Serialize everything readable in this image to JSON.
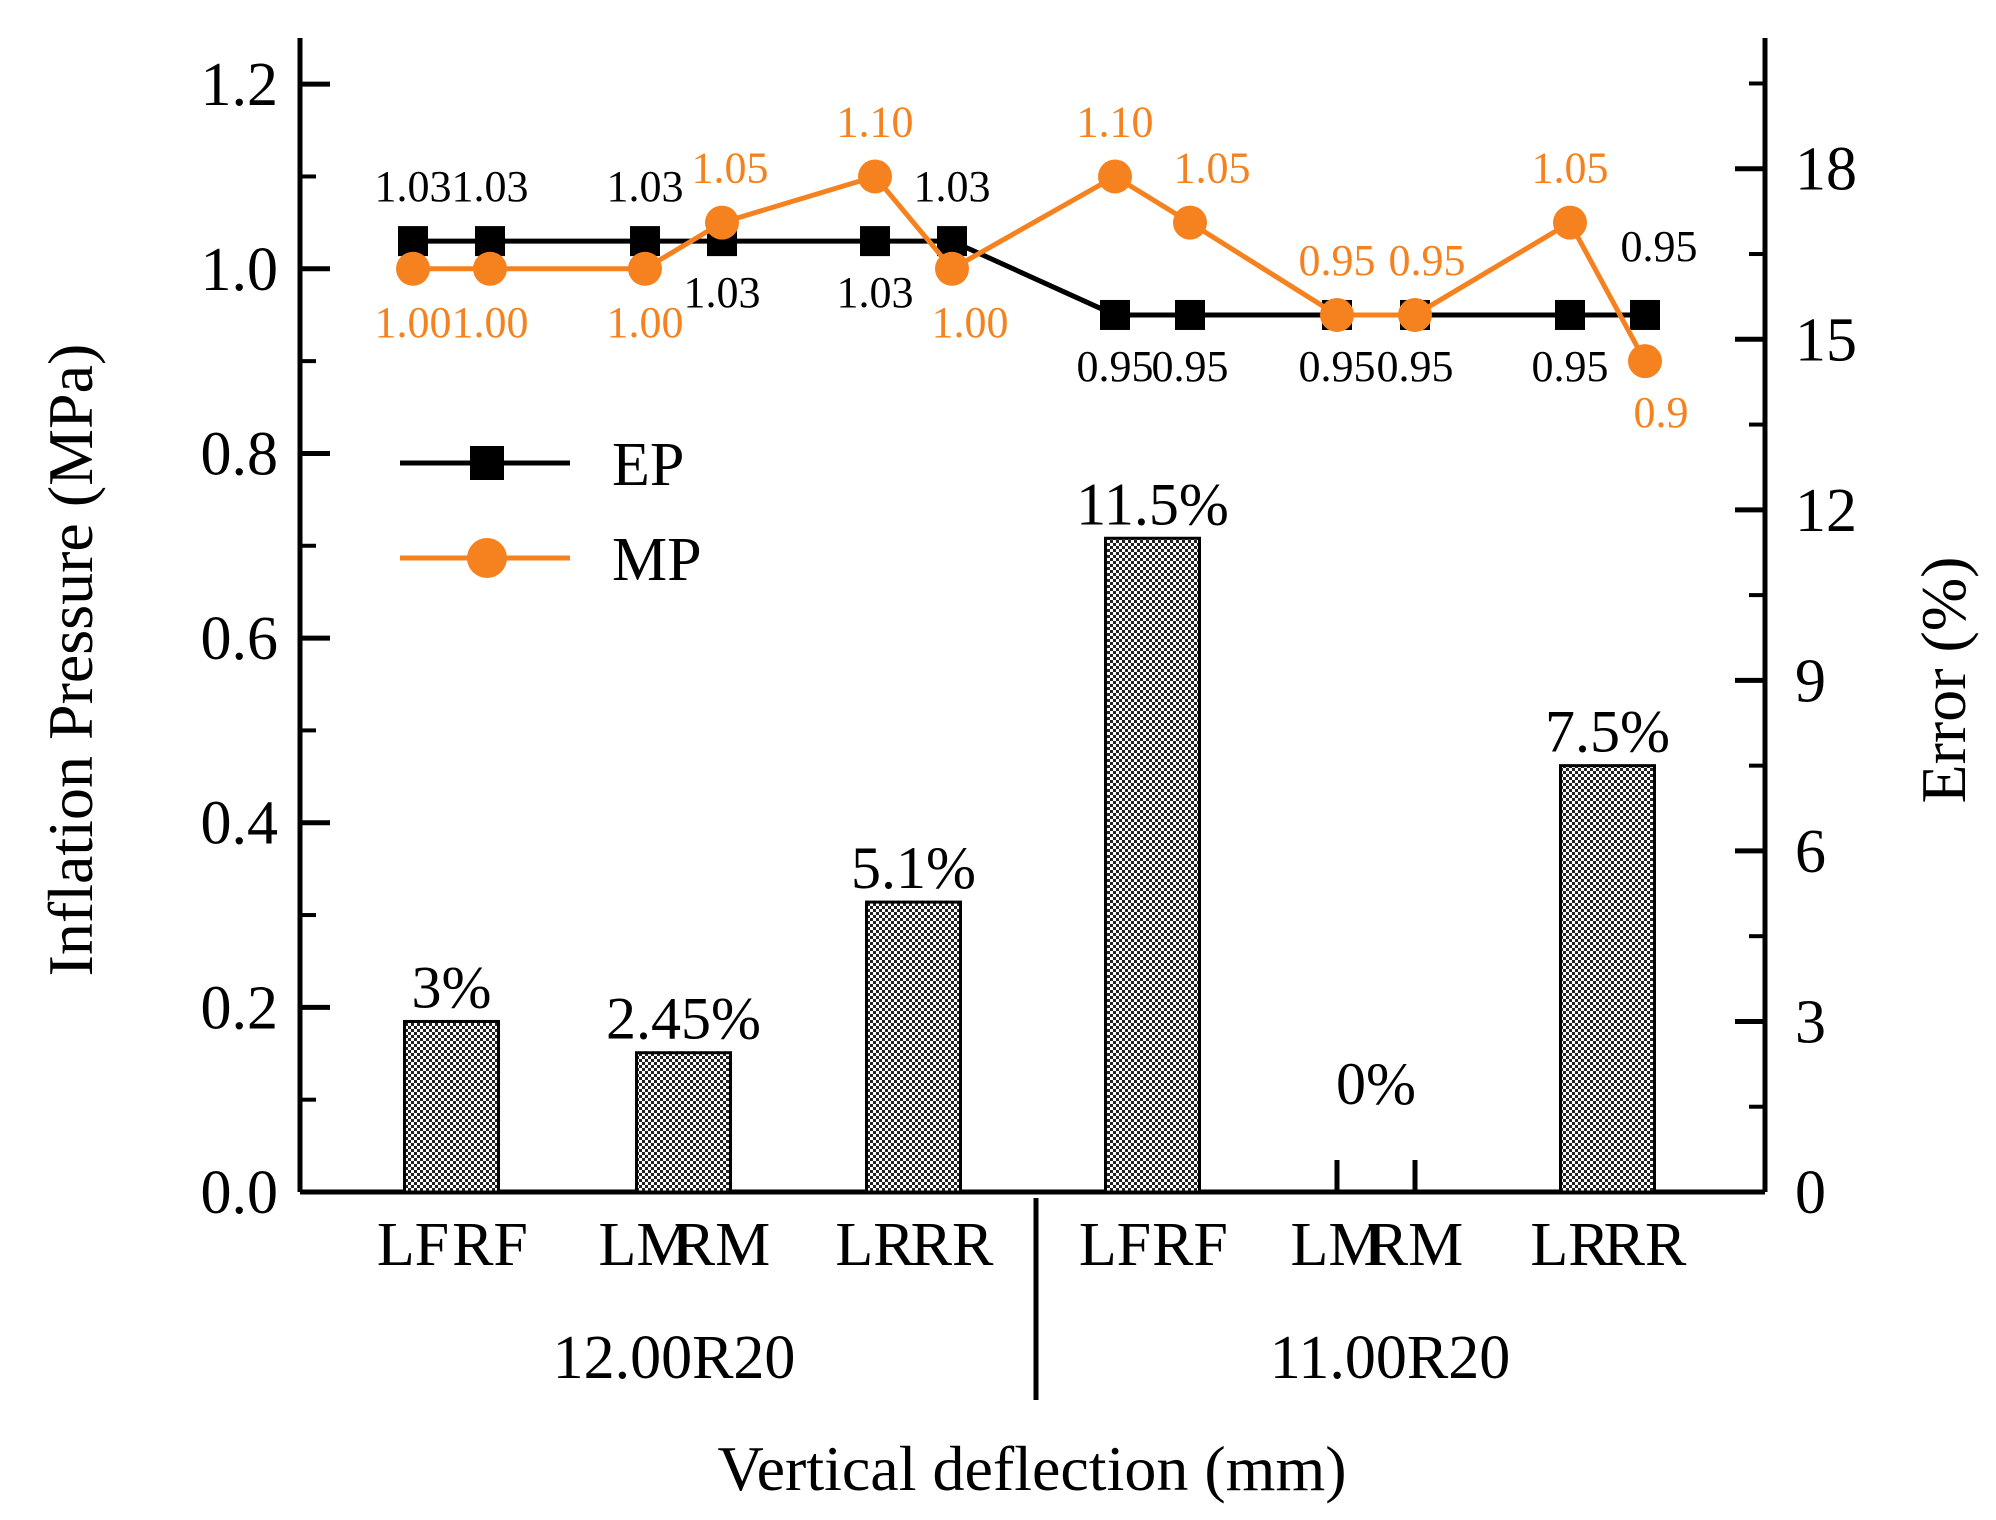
{
  "chart_data": {
    "type": "bar+line",
    "categories": [
      "LF",
      "RF",
      "LM",
      "RM",
      "LR",
      "RR",
      "LF",
      "RF",
      "LM",
      "RM",
      "LR",
      "RR"
    ],
    "groups": [
      {
        "name": "12.00R20",
        "start": 0,
        "end": 5
      },
      {
        "name": "11.00R20",
        "start": 6,
        "end": 11
      }
    ],
    "xlabel": "Vertical deflection (mm)",
    "ylabel_left": "Inflation Pressure (MPa)",
    "ylabel_right": "Error (%)",
    "ylim_left": [
      0,
      1.25
    ],
    "ylim_right": [
      0,
      20.3
    ],
    "yticks_left": [
      "0.0",
      "0.2",
      "0.4",
      "0.6",
      "0.8",
      "1.0",
      "1.2"
    ],
    "yticks_right": [
      "0",
      "3",
      "6",
      "9",
      "12",
      "15",
      "18"
    ],
    "error_bars": [
      {
        "pair": [
          0,
          1
        ],
        "value": 3.0,
        "label": "3%"
      },
      {
        "pair": [
          2,
          3
        ],
        "value": 2.45,
        "label": "2.45%"
      },
      {
        "pair": [
          4,
          5
        ],
        "value": 5.1,
        "label": "5.1%"
      },
      {
        "pair": [
          6,
          7
        ],
        "value": 11.5,
        "label": "11.5%"
      },
      {
        "pair": [
          8,
          9
        ],
        "value": 0,
        "label": "0%"
      },
      {
        "pair": [
          10,
          11
        ],
        "value": 7.5,
        "label": "7.5%"
      }
    ],
    "series": [
      {
        "name": "EP",
        "color": "#000000",
        "marker": "square",
        "values": [
          1.03,
          1.03,
          1.03,
          1.03,
          1.03,
          1.03,
          0.95,
          0.95,
          0.95,
          0.95,
          0.95,
          0.95
        ],
        "labels": [
          "1.03",
          "1.03",
          "1.03",
          "1.03",
          "1.03",
          "1.03",
          "0.95",
          "0.95",
          "0.95",
          "0.95",
          "0.95",
          "0.95"
        ]
      },
      {
        "name": "MP",
        "color": "#f5821f",
        "marker": "circle",
        "values": [
          1.0,
          1.0,
          1.0,
          1.05,
          1.1,
          1.0,
          1.1,
          1.05,
          0.95,
          0.95,
          1.05,
          0.9
        ],
        "labels": [
          "1.00",
          "1.00",
          "1.00",
          "1.05",
          "1.10",
          "1.00",
          "1.10",
          "1.05",
          "0.95",
          "0.95",
          "1.05",
          "0.9"
        ]
      }
    ],
    "legend": {
      "position": "upper-left",
      "entries": [
        "EP",
        "MP"
      ]
    }
  }
}
